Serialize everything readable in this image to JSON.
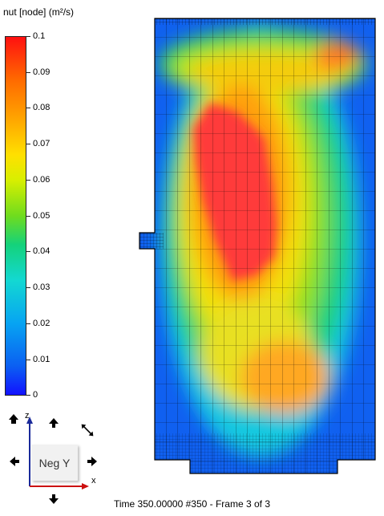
{
  "legend": {
    "title": "nut [node] (m²/s)",
    "ticks": [
      "0.1",
      "0.09",
      "0.08",
      "0.07",
      "0.06",
      "0.05",
      "0.04",
      "0.03",
      "0.02",
      "0.01",
      "0"
    ]
  },
  "view": {
    "label": "Neg Y",
    "axis_z": "z",
    "axis_x": "x"
  },
  "status": {
    "text": "Time 350.00000  #350 - Frame 3 of 3"
  }
}
